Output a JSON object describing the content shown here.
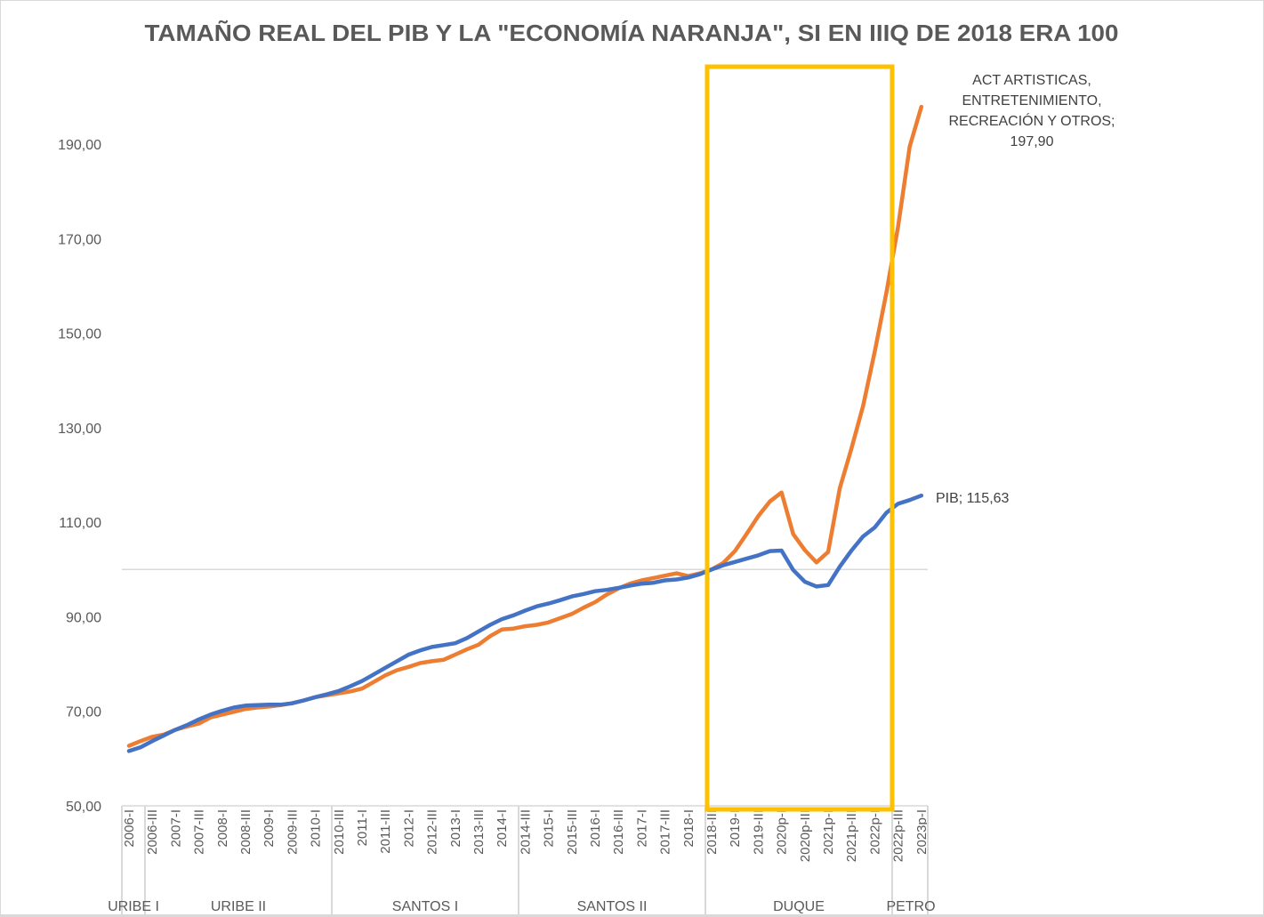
{
  "chart_data": {
    "type": "line",
    "title": "TAMAÑO REAL DEL PIB Y LA \"ECONOMÍA NARANJA\", SI EN IIIQ DE 2018 ERA 100",
    "xlabel": "",
    "ylabel": "",
    "ylim": [
      50,
      200
    ],
    "y_ticks": [
      "50,00",
      "70,00",
      "90,00",
      "110,00",
      "130,00",
      "150,00",
      "170,00",
      "190,00"
    ],
    "y_tick_values": [
      50,
      70,
      90,
      110,
      130,
      150,
      170,
      190
    ],
    "reference_line": 100,
    "grid": false,
    "x_tick_labels": [
      "2006-I",
      "2006-III",
      "2007-I",
      "2007-III",
      "2008-I",
      "2008-III",
      "2009-I",
      "2009-III",
      "2010-I",
      "2010-III",
      "2011-I",
      "2011-III",
      "2012-I",
      "2012-III",
      "2013-I",
      "2013-III",
      "2014-I",
      "2014-III",
      "2015-I",
      "2015-III",
      "2016-I",
      "2016-III",
      "2017-I",
      "2017-III",
      "2018-I",
      "2018-III",
      "2019-I",
      "2019-III",
      "2020p-I",
      "2020p-III",
      "2021p-I",
      "2021p-III",
      "2022p-I",
      "2022p-III",
      "2023p-I"
    ],
    "periods": [
      {
        "label": "URIBE I",
        "from": "2006-I",
        "to": "2006-I"
      },
      {
        "label": "URIBE II",
        "from": "2006-III",
        "to": "2010-II"
      },
      {
        "label": "SANTOS I",
        "from": "2010-III",
        "to": "2014-II"
      },
      {
        "label": "SANTOS II",
        "from": "2014-III",
        "to": "2018-II"
      },
      {
        "label": "DUQUE",
        "from": "2018-III",
        "to": "2022p-II"
      },
      {
        "label": "PETRO",
        "from": "2022p-III",
        "to": "2023p-I"
      }
    ],
    "highlight_box": {
      "from": "2018-III",
      "to": "2022p-III",
      "color": "#FFC000"
    },
    "series": [
      {
        "name": "PIB",
        "color": "#4472C4",
        "values": [
          61.6,
          62.4,
          63.7,
          64.9,
          66.1,
          67.1,
          68.3,
          69.3,
          70.1,
          70.8,
          71.2,
          71.3,
          71.4,
          71.4,
          71.7,
          72.3,
          73.0,
          73.6,
          74.3,
          75.3,
          76.4,
          77.8,
          79.2,
          80.6,
          82.0,
          82.9,
          83.6,
          84.0,
          84.4,
          85.5,
          86.9,
          88.3,
          89.5,
          90.3,
          91.3,
          92.2,
          92.8,
          93.5,
          94.3,
          94.8,
          95.4,
          95.7,
          96.1,
          96.6,
          97.0,
          97.2,
          97.7,
          97.9,
          98.3,
          99.0,
          100.0,
          100.9,
          101.6,
          102.3,
          103.0,
          103.9,
          104.0,
          99.9,
          97.4,
          96.4,
          96.7,
          100.6,
          104.0,
          107.0,
          108.9,
          112.0,
          113.9,
          114.7,
          115.63
        ],
        "label": "PIB;  115,63"
      },
      {
        "name": "ACT ARTISTICAS, ENTRETENIMIENTO, RECREACIÓN Y OTROS",
        "color": "#ED7D31",
        "values": [
          62.7,
          63.7,
          64.6,
          65.1,
          66.1,
          66.8,
          67.4,
          68.7,
          69.3,
          69.9,
          70.5,
          70.8,
          71.0,
          71.3,
          71.7,
          72.3,
          73.0,
          73.4,
          73.8,
          74.2,
          74.8,
          76.2,
          77.6,
          78.7,
          79.4,
          80.2,
          80.6,
          80.9,
          82.0,
          83.1,
          84.1,
          85.9,
          87.3,
          87.5,
          88.0,
          88.3,
          88.8,
          89.7,
          90.6,
          91.9,
          93.1,
          94.7,
          96.0,
          97.0,
          97.7,
          98.2,
          98.7,
          99.2,
          98.6,
          99.2,
          100.0,
          101.4,
          103.9,
          107.5,
          111.3,
          114.4,
          116.3,
          107.5,
          104.1,
          101.5,
          103.7,
          117.2,
          125.6,
          134.6,
          146.1,
          158.6,
          172.5,
          189.5,
          197.9
        ],
        "label_lines": [
          "ACT ARTISTICAS,",
          "ENTRETENIMIENTO,",
          "RECREACIÓN Y OTROS;",
          "197,90"
        ]
      }
    ]
  }
}
